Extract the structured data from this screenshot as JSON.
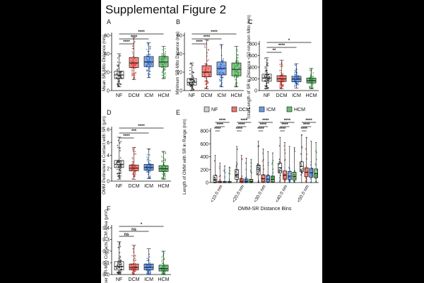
{
  "figure_title": "Supplemental Figure 2",
  "colors": {
    "NF": "#333333",
    "DCM": "#e23b2e",
    "ICM": "#2f6fd6",
    "HCM": "#2e9e3a"
  },
  "chart_data": [
    {
      "type": "box",
      "panel": "A",
      "ylabel": "Mean SR-Mito Distance (nm)",
      "ylim": [
        0,
        60
      ],
      "yticks": [
        "0",
        "20",
        "40",
        "60"
      ],
      "categories": [
        "NF",
        "DCM",
        "ICM",
        "HCM"
      ],
      "box_stats": [
        {
          "min": 4,
          "q1": 13,
          "median": 17,
          "q3": 21,
          "max": 40
        },
        {
          "min": 12,
          "q1": 25,
          "median": 30,
          "q3": 36,
          "max": 58
        },
        {
          "min": 14,
          "q1": 26,
          "median": 31,
          "q3": 37,
          "max": 52
        },
        {
          "min": 13,
          "q1": 26,
          "median": 31,
          "q3": 37,
          "max": 48
        }
      ],
      "significance": [
        "****",
        "****",
        "****"
      ],
      "grid": false
    },
    {
      "type": "box",
      "panel": "B",
      "ylabel": "Minimum SR-Mito Distance (nm)",
      "ylim": [
        0,
        60
      ],
      "yticks": [
        "0",
        "20",
        "40",
        "60"
      ],
      "categories": [
        "NF",
        "DCM",
        "ICM",
        "HCM"
      ],
      "box_stats": [
        {
          "min": 0,
          "q1": 6,
          "median": 9,
          "q3": 13,
          "max": 30
        },
        {
          "min": 2,
          "q1": 15,
          "median": 20,
          "q3": 27,
          "max": 55
        },
        {
          "min": 4,
          "q1": 17,
          "median": 24,
          "q3": 31,
          "max": 50
        },
        {
          "min": 4,
          "q1": 16,
          "median": 23,
          "q3": 30,
          "max": 48
        }
      ],
      "significance": [
        "****",
        "****",
        "****"
      ],
      "grid": false
    },
    {
      "type": "box",
      "panel": "C",
      "ylabel": "Total Length of SR in Distance <50 nm from Mito (nm)",
      "ylim": [
        0,
        800
      ],
      "yticks": [
        "0",
        "200",
        "400",
        "600",
        "800"
      ],
      "categories": [
        "NF",
        "DCM",
        "ICM",
        "HCM"
      ],
      "box_stats": [
        {
          "min": 30,
          "q1": 160,
          "median": 215,
          "q3": 280,
          "max": 560
        },
        {
          "min": 30,
          "q1": 155,
          "median": 200,
          "q3": 255,
          "max": 520
        },
        {
          "min": 40,
          "q1": 150,
          "median": 195,
          "q3": 245,
          "max": 460
        },
        {
          "min": 30,
          "q1": 130,
          "median": 170,
          "q3": 215,
          "max": 380
        }
      ],
      "significance": [
        "**",
        "****",
        "*"
      ],
      "grid": false
    },
    {
      "type": "box",
      "panel": "D",
      "ylabel": "OMM Perimeter in Contact with SR (μm)",
      "ylim": [
        0,
        8
      ],
      "yticks": [
        "0",
        "2",
        "4",
        "6",
        "8"
      ],
      "categories": [
        "NF",
        "DCM",
        "ICM",
        "HCM"
      ],
      "box_stats": [
        {
          "min": 0.3,
          "q1": 2.1,
          "median": 2.6,
          "q3": 3.2,
          "max": 6.8
        },
        {
          "min": 0.3,
          "q1": 1.6,
          "median": 2.0,
          "q3": 2.5,
          "max": 5.2
        },
        {
          "min": 0.4,
          "q1": 1.7,
          "median": 2.1,
          "q3": 2.6,
          "max": 5.0
        },
        {
          "min": 0.3,
          "q1": 1.5,
          "median": 1.9,
          "q3": 2.4,
          "max": 4.6
        }
      ],
      "significance": [
        "****",
        "***",
        "****"
      ],
      "grid": false
    },
    {
      "type": "box",
      "panel": "E",
      "ylabel": "Length of OMM with SR in Range (nm)",
      "xlabel": "OMM-SR Distance Bins",
      "ylim": [
        0,
        800
      ],
      "yticks": [
        "0",
        "200",
        "400",
        "600",
        "800"
      ],
      "legend": [
        "NF",
        "DCM",
        "ICM",
        "HCM"
      ],
      "legend_position": "top",
      "categories": [
        "<10.0 nm",
        "<20.0 nm",
        "<30.0 nm",
        "<40.0 nm",
        "<50.0 nm"
      ],
      "series": [
        {
          "name": "NF",
          "box_stats": [
            {
              "min": 0,
              "q1": 0,
              "median": 40,
              "q3": 110,
              "max": 420
            },
            {
              "min": 0,
              "q1": 50,
              "median": 120,
              "q3": 200,
              "max": 560
            },
            {
              "min": 0,
              "q1": 120,
              "median": 200,
              "q3": 270,
              "max": 640
            },
            {
              "min": 0,
              "q1": 150,
              "median": 230,
              "q3": 300,
              "max": 700
            },
            {
              "min": 0,
              "q1": 170,
              "median": 250,
              "q3": 320,
              "max": 740
            }
          ]
        },
        {
          "name": "DCM",
          "box_stats": [
            {
              "min": 0,
              "q1": 0,
              "median": 0,
              "q3": 20,
              "max": 300
            },
            {
              "min": 0,
              "q1": 0,
              "median": 20,
              "q3": 60,
              "max": 420
            },
            {
              "min": 0,
              "q1": 10,
              "median": 60,
              "q3": 120,
              "max": 520
            },
            {
              "min": 0,
              "q1": 50,
              "median": 110,
              "q3": 180,
              "max": 620
            },
            {
              "min": 0,
              "q1": 90,
              "median": 160,
              "q3": 230,
              "max": 700
            }
          ]
        },
        {
          "name": "ICM",
          "box_stats": [
            {
              "min": 0,
              "q1": 0,
              "median": 0,
              "q3": 15,
              "max": 260
            },
            {
              "min": 0,
              "q1": 0,
              "median": 15,
              "q3": 55,
              "max": 380
            },
            {
              "min": 0,
              "q1": 10,
              "median": 55,
              "q3": 110,
              "max": 480
            },
            {
              "min": 0,
              "q1": 45,
              "median": 100,
              "q3": 170,
              "max": 560
            },
            {
              "min": 0,
              "q1": 80,
              "median": 150,
              "q3": 220,
              "max": 640
            }
          ]
        },
        {
          "name": "HCM",
          "box_stats": [
            {
              "min": 0,
              "q1": 0,
              "median": 0,
              "q3": 15,
              "max": 240
            },
            {
              "min": 0,
              "q1": 0,
              "median": 15,
              "q3": 50,
              "max": 360
            },
            {
              "min": 0,
              "q1": 10,
              "median": 50,
              "q3": 100,
              "max": 460
            },
            {
              "min": 0,
              "q1": 40,
              "median": 95,
              "q3": 160,
              "max": 540
            },
            {
              "min": 0,
              "q1": 75,
              "median": 140,
              "q3": 210,
              "max": 620
            }
          ]
        }
      ],
      "significance_per_bin": [
        "****",
        "****",
        "****"
      ],
      "grid": false
    },
    {
      "type": "box",
      "panel": "F",
      "ylabel": "Number SR-Mito Contacts / CM Area (μm²)",
      "ylim": [
        0,
        0.4
      ],
      "yticks": [
        "0.0",
        "0.1",
        "0.2",
        "0.3",
        "0.4"
      ],
      "categories": [
        "NF",
        "DCM",
        "ICM",
        "HCM"
      ],
      "box_stats": [
        {
          "min": 0.0,
          "q1": 0.04,
          "median": 0.07,
          "q3": 0.11,
          "max": 0.28
        },
        {
          "min": 0.0,
          "q1": 0.04,
          "median": 0.06,
          "q3": 0.09,
          "max": 0.25
        },
        {
          "min": 0.0,
          "q1": 0.04,
          "median": 0.06,
          "q3": 0.09,
          "max": 0.22
        },
        {
          "min": 0.0,
          "q1": 0.03,
          "median": 0.05,
          "q3": 0.08,
          "max": 0.2
        }
      ],
      "significance": [
        "ns",
        "ns",
        "*"
      ],
      "grid": false
    }
  ]
}
